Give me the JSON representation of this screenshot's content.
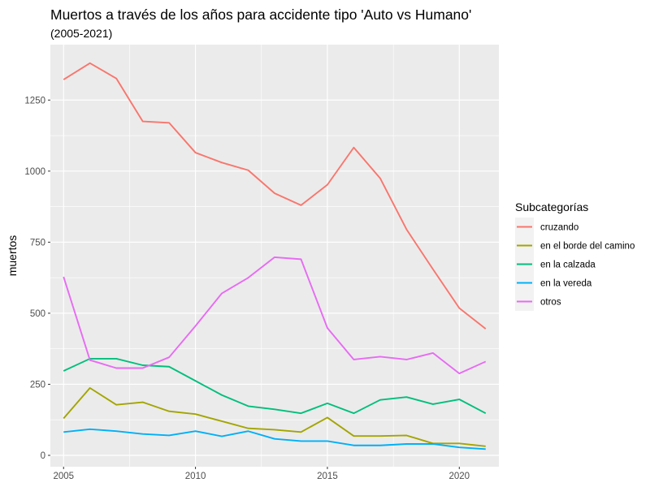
{
  "chart_data": {
    "type": "line",
    "title": "Muertos a través de los años para accidente tipo 'Auto vs Humano'",
    "subtitle": "(2005-2021)",
    "xlabel": "",
    "ylabel": "muertos",
    "xlim": [
      2004.5,
      2021.5
    ],
    "ylim": [
      -40,
      1445
    ],
    "x_ticks": [
      2005,
      2010,
      2015,
      2020
    ],
    "y_ticks": [
      0,
      250,
      500,
      750,
      1000,
      1250
    ],
    "grid": true,
    "legend_title": "Subcategorías",
    "legend_position": "right",
    "x": [
      2005,
      2006,
      2007,
      2008,
      2009,
      2010,
      2011,
      2012,
      2013,
      2014,
      2015,
      2016,
      2017,
      2018,
      2019,
      2020,
      2021
    ],
    "series": [
      {
        "name": "cruzando",
        "color": "#F8766D",
        "values": [
          1322,
          1380,
          1326,
          1175,
          1170,
          1065,
          1030,
          1003,
          922,
          880,
          952,
          1083,
          975,
          795,
          655,
          518,
          445
        ]
      },
      {
        "name": "en el borde del camino",
        "color": "#A3A500",
        "values": [
          130,
          237,
          178,
          187,
          155,
          145,
          120,
          95,
          90,
          82,
          133,
          68,
          68,
          70,
          42,
          42,
          32
        ]
      },
      {
        "name": "en la calzada",
        "color": "#00BF7D",
        "values": [
          297,
          340,
          340,
          317,
          312,
          262,
          212,
          173,
          162,
          148,
          183,
          148,
          195,
          205,
          180,
          197,
          148
        ]
      },
      {
        "name": "en la vereda",
        "color": "#00B0F6",
        "values": [
          82,
          92,
          85,
          75,
          70,
          85,
          67,
          85,
          58,
          50,
          50,
          35,
          35,
          40,
          40,
          28,
          22
        ]
      },
      {
        "name": "otros",
        "color": "#E76BF3",
        "values": [
          628,
          335,
          307,
          307,
          345,
          455,
          570,
          625,
          697,
          690,
          448,
          337,
          347,
          337,
          360,
          288,
          330
        ]
      }
    ]
  }
}
